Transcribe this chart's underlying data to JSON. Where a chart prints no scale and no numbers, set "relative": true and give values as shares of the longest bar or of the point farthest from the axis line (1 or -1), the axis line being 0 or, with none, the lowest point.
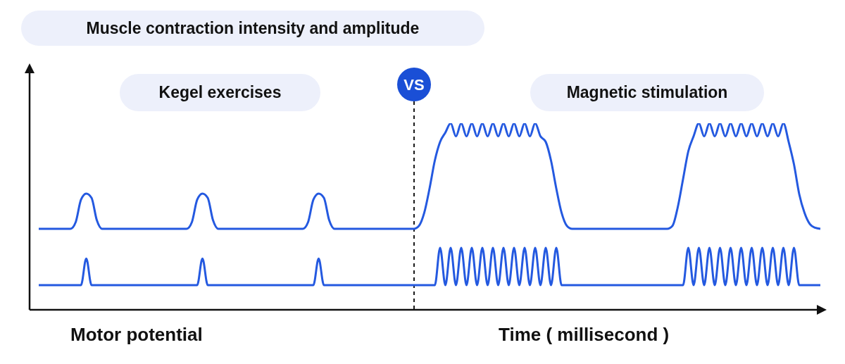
{
  "chart_data": {
    "type": "line",
    "title": "Muscle contraction intensity and amplitude",
    "xlabel": "Time ( millisecond )",
    "annotations": [
      "Kegel exercises",
      "VS",
      "Magnetic stimulation",
      "Motor potential"
    ],
    "relative": true,
    "categories": [
      null,
      null,
      null,
      null,
      null,
      null,
      null,
      null,
      null,
      null,
      null,
      null,
      null,
      null,
      null,
      null,
      null,
      null,
      null,
      null,
      null,
      null,
      null,
      null,
      null,
      null,
      null,
      null,
      null,
      null,
      null,
      null,
      null,
      null,
      null,
      null,
      null,
      null,
      null,
      null,
      null,
      null,
      null,
      null,
      null,
      null,
      null,
      null,
      null,
      null,
      null,
      null,
      null,
      null,
      null,
      null,
      null,
      null,
      null,
      null,
      null,
      null,
      null,
      null,
      null,
      null,
      null,
      null,
      null,
      null,
      null,
      null,
      null,
      null,
      null,
      null,
      null,
      null,
      null,
      null,
      null,
      null,
      null,
      null,
      null,
      null,
      null,
      null,
      null,
      null,
      null,
      null,
      null,
      null,
      null,
      null,
      null,
      null,
      null,
      null,
      null,
      null,
      null,
      null,
      null,
      null,
      null,
      null,
      null,
      null,
      null,
      null,
      null,
      null,
      null,
      null,
      null,
      null,
      null,
      null,
      null,
      null,
      null,
      null,
      null,
      null,
      null,
      null,
      null,
      null,
      null,
      null,
      null,
      null,
      null,
      null,
      null,
      null,
      null,
      null,
      null,
      null,
      null,
      null,
      null,
      null,
      null,
      null,
      null
    ],
    "series": [
      {
        "color": "#2459e0",
        "values": [
          0.434,
          0.434,
          0.434,
          0.434,
          0.434,
          0.434,
          0.434,
          0.47,
          0.59,
          0.623,
          0.6,
          0.48,
          0.434,
          0.434,
          0.434,
          0.434,
          0.434,
          0.434,
          0.434,
          0.434,
          0.434,
          0.434,
          0.434,
          0.434,
          0.434,
          0.434,
          0.434,
          0.434,
          0.434,
          0.47,
          0.59,
          0.623,
          0.6,
          0.48,
          0.434,
          0.434,
          0.434,
          0.434,
          0.434,
          0.434,
          0.434,
          0.434,
          0.434,
          0.434,
          0.434,
          0.434,
          0.434,
          0.434,
          0.434,
          0.434,
          0.434,
          0.47,
          0.59,
          0.623,
          0.6,
          0.48,
          0.434,
          0.434,
          0.434,
          0.434,
          0.434,
          0.434,
          0.434,
          0.434,
          0.434,
          0.434,
          0.434,
          0.434,
          0.434,
          0.434,
          0.434,
          0.434,
          0.45,
          0.52,
          0.65,
          0.8,
          0.9,
          0.95,
          1,
          0.93,
          1,
          0.93,
          1,
          0.93,
          1,
          0.93,
          1,
          0.93,
          1,
          0.93,
          1,
          0.93,
          1,
          0.93,
          1,
          0.93,
          0.9,
          0.8,
          0.65,
          0.52,
          0.45,
          0.434,
          0.434,
          0.434,
          0.434,
          0.434,
          0.434,
          0.434,
          0.434,
          0.434,
          0.434,
          0.434,
          0.434,
          0.434,
          0.434,
          0.434,
          0.434,
          0.434,
          0.434,
          0.434,
          0.45,
          0.55,
          0.7,
          0.85,
          0.93,
          1,
          0.93,
          1,
          0.93,
          1,
          0.93,
          1,
          0.93,
          1,
          0.93,
          1,
          0.93,
          1,
          0.93,
          1,
          0.93,
          1,
          0.9,
          0.78,
          0.62,
          0.52,
          0.46,
          0.44,
          0.434
        ]
      },
      {
        "color": "#2459e0",
        "values": [
          0.132,
          0.132,
          0.132,
          0.132,
          0.132,
          0.132,
          0.132,
          0.132,
          0.132,
          0.275,
          0.132,
          0.132,
          0.132,
          0.132,
          0.132,
          0.132,
          0.132,
          0.132,
          0.132,
          0.132,
          0.132,
          0.132,
          0.132,
          0.132,
          0.132,
          0.132,
          0.132,
          0.132,
          0.132,
          0.132,
          0.132,
          0.275,
          0.132,
          0.132,
          0.132,
          0.132,
          0.132,
          0.132,
          0.132,
          0.132,
          0.132,
          0.132,
          0.132,
          0.132,
          0.132,
          0.132,
          0.132,
          0.132,
          0.132,
          0.132,
          0.132,
          0.132,
          0.132,
          0.275,
          0.132,
          0.132,
          0.132,
          0.132,
          0.132,
          0.132,
          0.132,
          0.132,
          0.132,
          0.132,
          0.132,
          0.132,
          0.132,
          0.132,
          0.132,
          0.132,
          0.132,
          0.132,
          0.132,
          0.132,
          0.132,
          0.132,
          0.332,
          0.132,
          0.332,
          0.132,
          0.332,
          0.132,
          0.332,
          0.132,
          0.332,
          0.132,
          0.332,
          0.132,
          0.332,
          0.132,
          0.332,
          0.132,
          0.332,
          0.132,
          0.332,
          0.132,
          0.332,
          0.132,
          0.332,
          0.132,
          0.132,
          0.132,
          0.132,
          0.132,
          0.132,
          0.132,
          0.132,
          0.132,
          0.132,
          0.132,
          0.132,
          0.132,
          0.132,
          0.132,
          0.132,
          0.132,
          0.132,
          0.132,
          0.132,
          0.132,
          0.132,
          0.132,
          0.132,
          0.332,
          0.132,
          0.332,
          0.132,
          0.332,
          0.132,
          0.332,
          0.132,
          0.332,
          0.132,
          0.332,
          0.132,
          0.332,
          0.132,
          0.332,
          0.132,
          0.332,
          0.132,
          0.332,
          0.132,
          0.332,
          0.132,
          0.132,
          0.132,
          0.132,
          0.132
        ]
      }
    ]
  }
}
